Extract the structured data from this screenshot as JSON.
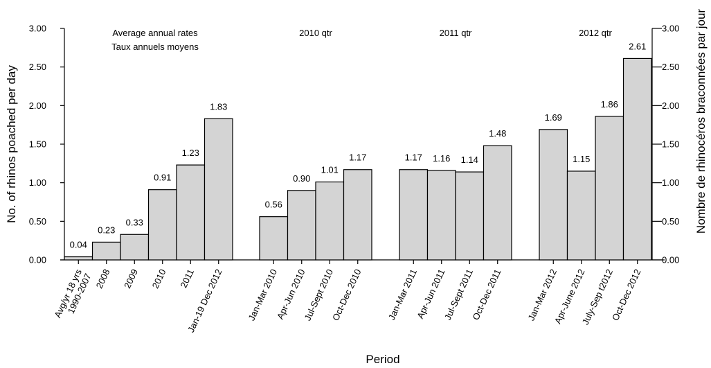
{
  "chart_data": {
    "type": "bar",
    "title": "",
    "xlabel": "Period",
    "ylabel": "No. of rhinos poached per day",
    "ylabel_right": "Nombre de rhinocéros braconnées par jour",
    "ylim": [
      0,
      3
    ],
    "yticks": [
      "0.00",
      "0.50",
      "1.00",
      "1.50",
      "2.00",
      "2.50",
      "3.00"
    ],
    "yticks_right": [
      "0.00",
      "0.50",
      "1.00",
      "1.50",
      "2.00",
      "2.50",
      "3.00"
    ],
    "grid": false,
    "legend": "none",
    "bar_color": "#d4d4d4",
    "groups": [
      {
        "title_lines": [
          "Average annual rates",
          "Taux annuels moyens"
        ],
        "categories": [
          [
            "Avg/yr 18 yrs",
            "1990-2007"
          ],
          [
            "2008"
          ],
          [
            "2009"
          ],
          [
            "2010"
          ],
          [
            "2011"
          ],
          [
            "Jan-19 Dec 2012"
          ]
        ],
        "values": [
          0.04,
          0.23,
          0.33,
          0.91,
          1.23,
          1.83
        ],
        "value_labels": [
          "0.04",
          "0.23",
          "0.33",
          "0.91",
          "1.23",
          "1.83"
        ]
      },
      {
        "title_lines": [
          "2010 qtr"
        ],
        "categories": [
          [
            "Jan-Mar 2010"
          ],
          [
            "Apr-Jun 2010"
          ],
          [
            "Jul-Sept 2010"
          ],
          [
            "Oct-Dec 2010"
          ]
        ],
        "values": [
          0.56,
          0.9,
          1.01,
          1.17
        ],
        "value_labels": [
          "0.56",
          "0.90",
          "1.01",
          "1.17"
        ]
      },
      {
        "title_lines": [
          "2011 qtr"
        ],
        "categories": [
          [
            "Jan-Mar 2011"
          ],
          [
            "Apr-Jun 2011"
          ],
          [
            "Jul-Sept 2011"
          ],
          [
            "Oct-Dec 2011"
          ]
        ],
        "values": [
          1.17,
          1.16,
          1.14,
          1.48
        ],
        "value_labels": [
          "1.17",
          "1.16",
          "1.14",
          "1.48"
        ]
      },
      {
        "title_lines": [
          "2012 qtr"
        ],
        "categories": [
          [
            "Jan-Mar 2012"
          ],
          [
            "Apr-June 2012"
          ],
          [
            "July-Sep t2012"
          ],
          [
            "Oct-Dec 2012"
          ]
        ],
        "values": [
          1.69,
          1.15,
          1.86,
          2.61
        ],
        "value_labels": [
          "1.69",
          "1.15",
          "1.86",
          "2.61"
        ]
      }
    ]
  }
}
